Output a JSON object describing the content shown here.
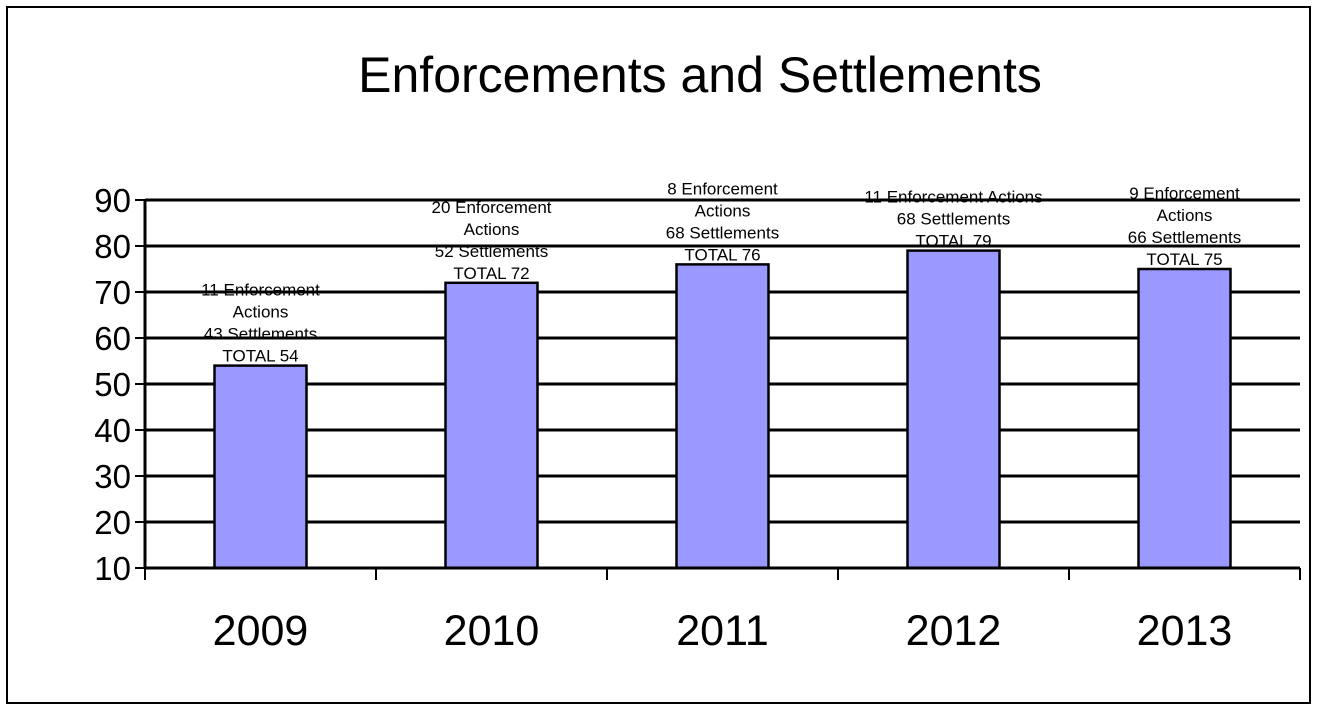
{
  "chart_data": {
    "type": "bar",
    "title": "Enforcements and Settlements",
    "xlabel": "",
    "ylabel": "",
    "categories": [
      "2009",
      "2010",
      "2011",
      "2012",
      "2013"
    ],
    "values": [
      54,
      72,
      76,
      79,
      75
    ],
    "ylim": [
      10,
      90
    ],
    "yticks": [
      10,
      20,
      30,
      40,
      50,
      60,
      70,
      80,
      90
    ],
    "grid": true,
    "bar_color": "#9999ff",
    "data_labels": [
      [
        "11 Enforcement",
        "Actions",
        "43  Settlements",
        "TOTAL 54"
      ],
      [
        "20 Enforcement",
        "Actions",
        "52 Settlements",
        "TOTAL 72"
      ],
      [
        "8 Enforcement",
        "Actions",
        "68 Settlements",
        "TOTAL 76"
      ],
      [
        "11 Enforcement Actions",
        "68 Settlements",
        "TOTAL 79"
      ],
      [
        "9 Enforcement",
        "Actions",
        "66 Settlements",
        "TOTAL 75"
      ]
    ]
  }
}
